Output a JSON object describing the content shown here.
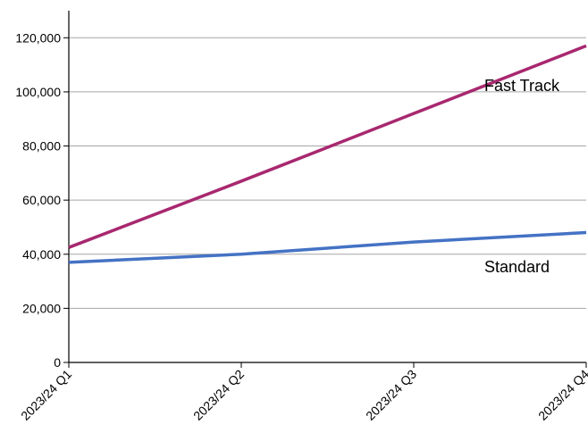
{
  "chart_data": {
    "type": "line",
    "categories": [
      "2023/24 Q1",
      "2023/24 Q2",
      "2023/24 Q3",
      "2023/24 Q4"
    ],
    "series": [
      {
        "name": "Fast Track",
        "values": [
          42500,
          67000,
          92000,
          117000
        ],
        "color": "#a8286f"
      },
      {
        "name": "Standard",
        "values": [
          37000,
          40000,
          44500,
          48000
        ],
        "color": "#4472c4"
      }
    ],
    "title": "",
    "xlabel": "",
    "ylabel": "",
    "ylim": [
      0,
      130000
    ],
    "yticks": [
      0,
      20000,
      40000,
      60000,
      80000,
      100000,
      120000
    ],
    "ytick_labels": [
      "0",
      "20,000",
      "40,000",
      "60,000",
      "80,000",
      "100,000",
      "120,000"
    ],
    "grid": "horizontal",
    "legend": "none (series labelled directly at right end)"
  }
}
